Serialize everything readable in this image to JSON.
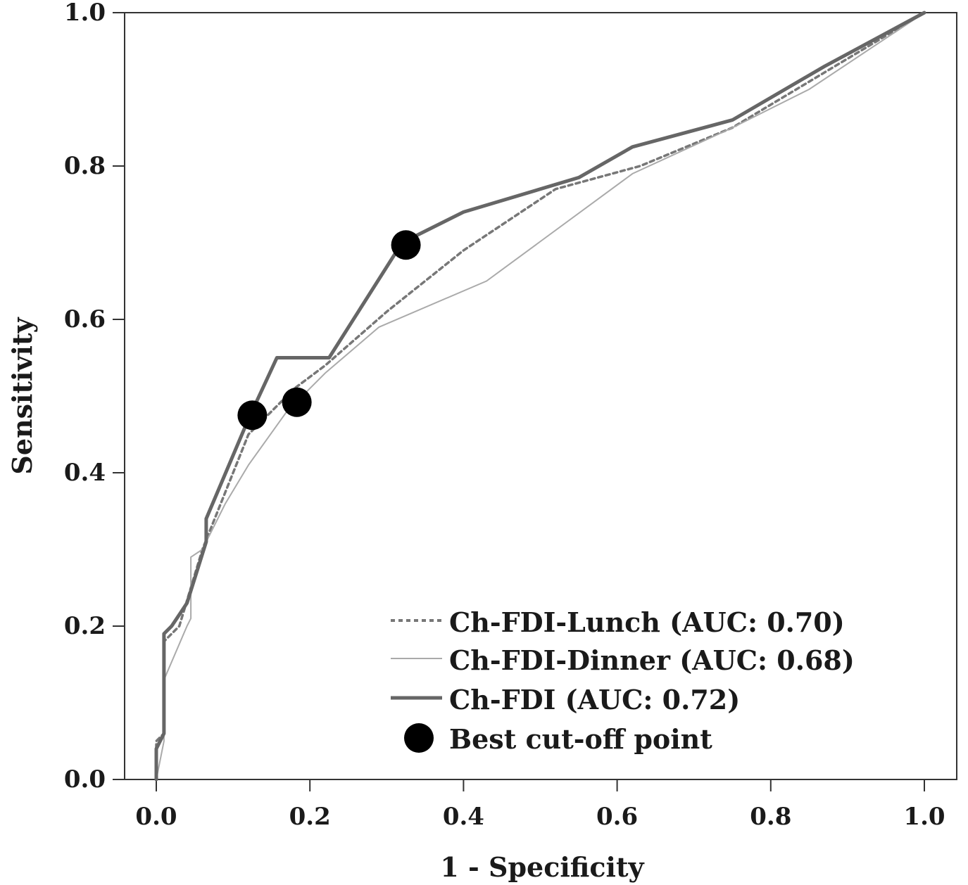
{
  "chart_data": {
    "type": "line",
    "title": "",
    "xlabel": "1 - Specificity",
    "ylabel": "Sensitivity",
    "xlim": [
      0,
      1
    ],
    "ylim": [
      0,
      1
    ],
    "x_ticks": [
      "0.0",
      "0.2",
      "0.4",
      "0.6",
      "0.8",
      "1.0"
    ],
    "y_ticks": [
      "0.0",
      "0.2",
      "0.4",
      "0.6",
      "0.8",
      "1.0"
    ],
    "grid": false,
    "legend_position": "bottom-right",
    "series": [
      {
        "name": "Ch-FDI-Lunch (AUC: 0.70)",
        "style": "dashed",
        "color": "#777777",
        "points": [
          [
            0,
            0
          ],
          [
            0,
            0.05
          ],
          [
            0.01,
            0.06
          ],
          [
            0.01,
            0.18
          ],
          [
            0.03,
            0.2
          ],
          [
            0.06,
            0.3
          ],
          [
            0.08,
            0.35
          ],
          [
            0.12,
            0.45
          ],
          [
            0.18,
            0.51
          ],
          [
            0.22,
            0.54
          ],
          [
            0.3,
            0.61
          ],
          [
            0.4,
            0.69
          ],
          [
            0.52,
            0.77
          ],
          [
            0.63,
            0.8
          ],
          [
            0.75,
            0.85
          ],
          [
            0.85,
            0.91
          ],
          [
            1.0,
            1.0
          ]
        ]
      },
      {
        "name": "Ch-FDI-Dinner (AUC: 0.68)",
        "style": "thin",
        "color": "#aaaaaa",
        "points": [
          [
            0,
            0
          ],
          [
            0.01,
            0.05
          ],
          [
            0.01,
            0.13
          ],
          [
            0.04,
            0.2
          ],
          [
            0.045,
            0.21
          ],
          [
            0.045,
            0.29
          ],
          [
            0.06,
            0.3
          ],
          [
            0.09,
            0.36
          ],
          [
            0.12,
            0.41
          ],
          [
            0.17,
            0.48
          ],
          [
            0.22,
            0.53
          ],
          [
            0.29,
            0.59
          ],
          [
            0.43,
            0.65
          ],
          [
            0.62,
            0.79
          ],
          [
            0.75,
            0.85
          ],
          [
            0.85,
            0.9
          ],
          [
            1.0,
            1.0
          ]
        ]
      },
      {
        "name": "Ch-FDI (AUC: 0.72)",
        "style": "thick",
        "color": "#666666",
        "points": [
          [
            0,
            0
          ],
          [
            0,
            0.04
          ],
          [
            0.01,
            0.06
          ],
          [
            0.01,
            0.19
          ],
          [
            0.02,
            0.2
          ],
          [
            0.04,
            0.23
          ],
          [
            0.065,
            0.31
          ],
          [
            0.065,
            0.34
          ],
          [
            0.12,
            0.47
          ],
          [
            0.157,
            0.55
          ],
          [
            0.225,
            0.55
          ],
          [
            0.32,
            0.7
          ],
          [
            0.4,
            0.74
          ],
          [
            0.55,
            0.785
          ],
          [
            0.62,
            0.825
          ],
          [
            0.75,
            0.86
          ],
          [
            0.87,
            0.93
          ],
          [
            1.0,
            1.0
          ]
        ]
      }
    ],
    "cutoff_points": {
      "name": "Best cut-off point",
      "color": "#000000",
      "points": [
        [
          0.125,
          0.475
        ],
        [
          0.183,
          0.492
        ],
        [
          0.325,
          0.697
        ]
      ]
    }
  }
}
